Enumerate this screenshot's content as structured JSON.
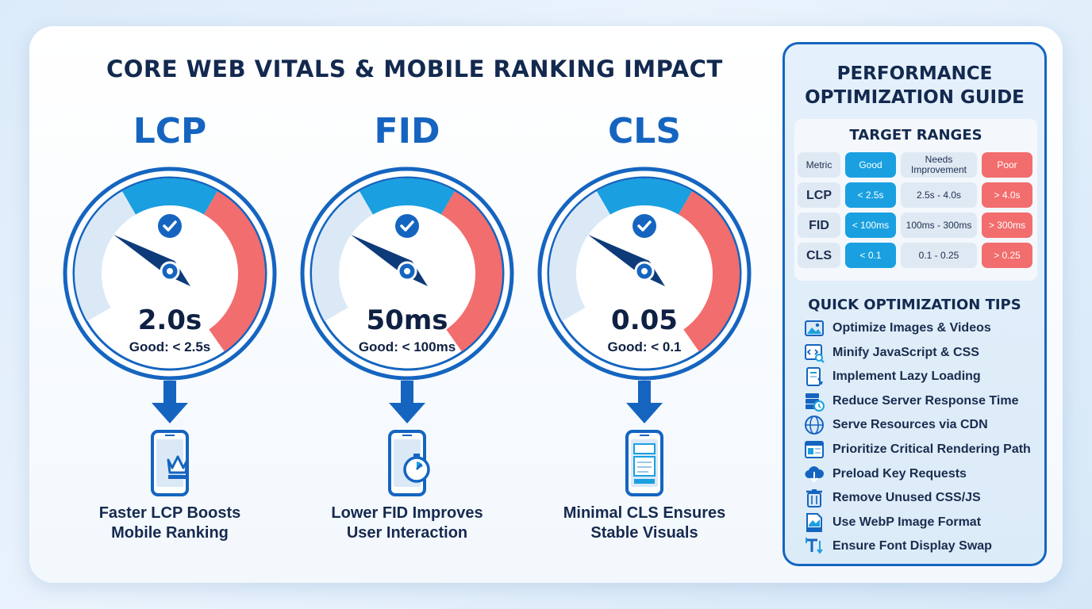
{
  "title": "CORE WEB VITALS & MOBILE RANKING IMPACT",
  "metrics": [
    {
      "name": "LCP",
      "value": "2.0s",
      "good": "Good: < 2.5s",
      "caption_line1": "Faster LCP Boosts",
      "caption_line2": "Mobile Ranking",
      "phone_icon": "phone-crown-icon"
    },
    {
      "name": "FID",
      "value": "50ms",
      "good": "Good: < 100ms",
      "caption_line1": "Lower FID Improves",
      "caption_line2": "User Interaction",
      "phone_icon": "phone-stopwatch-icon"
    },
    {
      "name": "CLS",
      "value": "0.05",
      "good": "Good: < 0.1",
      "caption_line1": "Minimal CLS Ensures",
      "caption_line2": "Stable Visuals",
      "phone_icon": "phone-layout-icon"
    }
  ],
  "guide": {
    "title_line1": "PERFORMANCE",
    "title_line2": "OPTIMIZATION GUIDE",
    "ranges_title": "TARGET RANGES",
    "headers": {
      "metric": "Metric",
      "good": "Good",
      "needs": "Needs Improvement",
      "poor": "Poor"
    },
    "rows": [
      {
        "metric": "LCP",
        "good": "< 2.5s",
        "needs": "2.5s - 4.0s",
        "poor": "> 4.0s"
      },
      {
        "metric": "FID",
        "good": "< 100ms",
        "needs": "100ms - 300ms",
        "poor": "> 300ms"
      },
      {
        "metric": "CLS",
        "good": "< 0.1",
        "needs": "0.1 - 0.25",
        "poor": "> 0.25"
      }
    ],
    "tips_title": "QUICK OPTIMIZATION TIPS",
    "tips": [
      {
        "label": "Optimize Images & Videos",
        "icon": "image-icon"
      },
      {
        "label": "Minify JavaScript & CSS",
        "icon": "code-icon"
      },
      {
        "label": "Implement Lazy Loading",
        "icon": "lazy-load-icon"
      },
      {
        "label": "Reduce Server Response Time",
        "icon": "server-clock-icon"
      },
      {
        "label": "Serve Resources via CDN",
        "icon": "globe-icon"
      },
      {
        "label": "Prioritize Critical Rendering Path",
        "icon": "render-path-icon"
      },
      {
        "label": "Preload Key Requests",
        "icon": "cloud-download-icon"
      },
      {
        "label": "Remove Unused CSS/JS",
        "icon": "trash-icon"
      },
      {
        "label": "Use WebP Image Format",
        "icon": "webp-file-icon"
      },
      {
        "label": "Ensure Font Display Swap",
        "icon": "font-swap-icon"
      }
    ]
  },
  "colors": {
    "primary": "#1565c0",
    "good": "#1aa0e0",
    "poor": "#f26d6d",
    "needs": "#dfe9f3",
    "text": "#13294f"
  }
}
